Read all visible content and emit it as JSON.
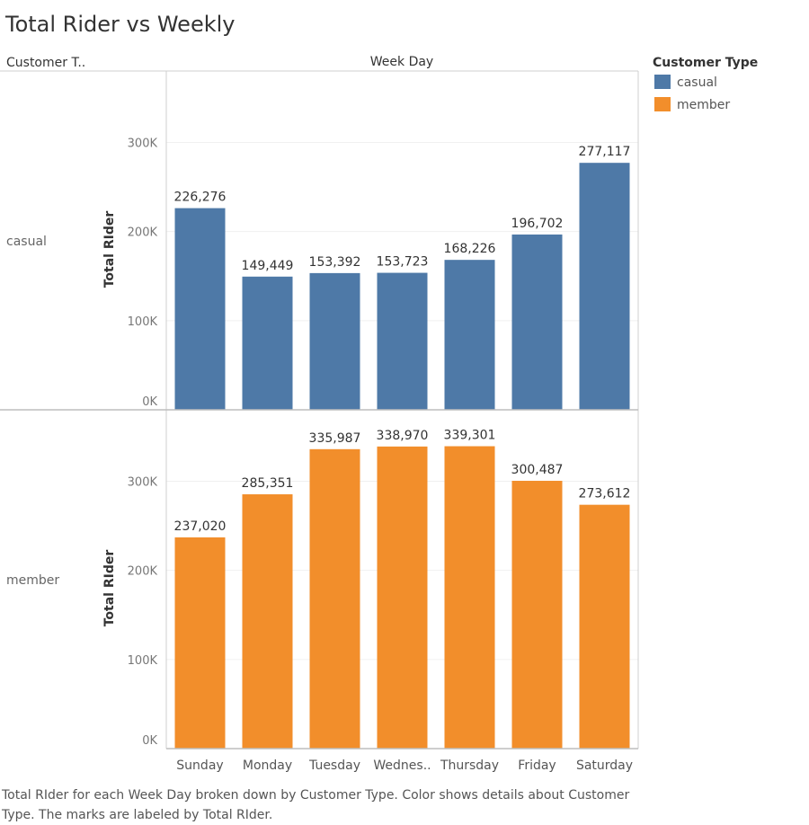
{
  "colors": {
    "casual": "#4e79a7",
    "member": "#f28e2b"
  },
  "chart_data": {
    "type": "bar",
    "title": "Total Rider vs Weekly",
    "column_header": "Week Day",
    "row_header": "Customer T..",
    "ylabel": "Total RIder",
    "ylim": [
      0,
      380000
    ],
    "yticks": [
      0,
      100000,
      200000,
      300000
    ],
    "ytick_labels": [
      "0K",
      "100K",
      "200K",
      "300K"
    ],
    "categories": [
      "Sunday",
      "Monday",
      "Tuesday",
      "Wednes..",
      "Thursday",
      "Friday",
      "Saturday"
    ],
    "series": [
      {
        "name": "casual",
        "values": [
          226276,
          149449,
          153392,
          153723,
          168226,
          196702,
          277117
        ],
        "labels": [
          "226,276",
          "149,449",
          "153,392",
          "153,723",
          "168,226",
          "196,702",
          "277,117"
        ]
      },
      {
        "name": "member",
        "values": [
          237020,
          285351,
          335987,
          338970,
          339301,
          300487,
          273612
        ],
        "labels": [
          "237,020",
          "285,351",
          "335,987",
          "338,970",
          "339,301",
          "300,487",
          "273,612"
        ]
      }
    ],
    "legend": {
      "title": "Customer Type",
      "position": "right",
      "items": [
        "casual",
        "member"
      ]
    },
    "grid": true,
    "caption_lines": [
      "Total RIder for each Week Day broken down by Customer Type.  Color shows details about Customer",
      "Type.  The marks are labeled by Total RIder."
    ]
  }
}
